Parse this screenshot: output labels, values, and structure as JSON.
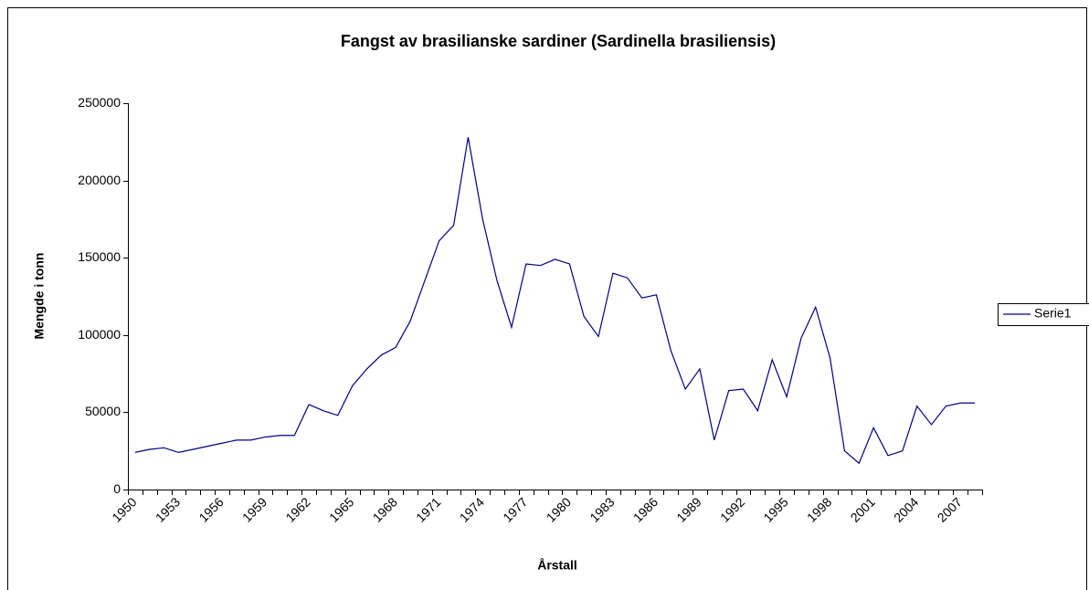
{
  "chart_data": {
    "type": "line",
    "title": "Fangst av brasilianske sardiner (Sardinella brasiliensis)",
    "x_label": "Årstall",
    "y_label": "Mengde i tonn",
    "categories": [
      "1950",
      null,
      null,
      "1953",
      null,
      null,
      "1956",
      null,
      null,
      "1959",
      null,
      null,
      "1962",
      null,
      null,
      "1965",
      null,
      null,
      "1968",
      null,
      null,
      "1971",
      null,
      null,
      "1974",
      null,
      null,
      "1977",
      null,
      null,
      "1980",
      null,
      null,
      "1983",
      null,
      null,
      "1986",
      null,
      null,
      "1989",
      null,
      null,
      "1992",
      null,
      null,
      "1995",
      null,
      null,
      "1998",
      null,
      null,
      "2001",
      null,
      null,
      "2004",
      null,
      null,
      "2007",
      null
    ],
    "series": [
      {
        "name": "Serie1",
        "color": "#000080",
        "values": [
          24000,
          26000,
          27000,
          24000,
          26000,
          28000,
          30000,
          32000,
          32000,
          34000,
          35000,
          35000,
          55000,
          51000,
          48000,
          67000,
          78000,
          87000,
          92000,
          109000,
          135000,
          161000,
          171000,
          228000,
          175000,
          135000,
          105000,
          146000,
          145000,
          149000,
          146000,
          112000,
          99000,
          140000,
          137000,
          124000,
          126000,
          90000,
          65000,
          78000,
          32000,
          64000,
          65000,
          51000,
          84000,
          60000,
          98000,
          118000,
          85000,
          25000,
          17000,
          40000,
          22000,
          25000,
          54000,
          42000,
          54000,
          56000,
          56000
        ]
      }
    ],
    "ylim": [
      0,
      250000
    ],
    "yticks": [
      0,
      50000,
      100000,
      150000,
      200000,
      250000
    ],
    "grid": false,
    "legend": "right"
  }
}
